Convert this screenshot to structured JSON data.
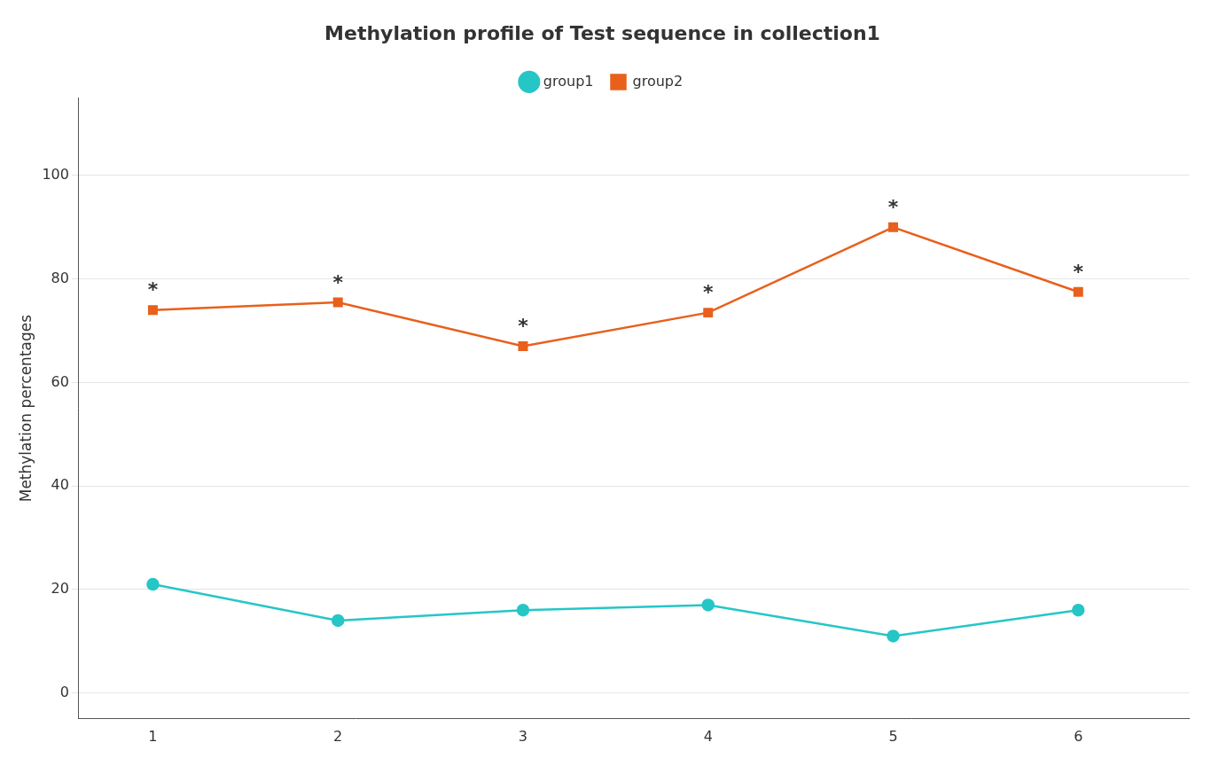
{
  "chart_data": {
    "type": "line",
    "title": "Methylation profile of Test sequence in collection1",
    "ylabel": "Methylation percentages",
    "x": [
      1,
      2,
      3,
      4,
      5,
      6
    ],
    "series": [
      {
        "name": "group1",
        "color": "#26C6C6",
        "marker": "circle",
        "values": [
          21.0,
          14.0,
          16.0,
          17.0,
          11.0,
          16.0
        ]
      },
      {
        "name": "group2",
        "color": "#E8601C",
        "marker": "square",
        "values": [
          74.0,
          75.5,
          67.0,
          73.5,
          90.0,
          77.5
        ]
      }
    ],
    "xlim": [
      0.6,
      6.6
    ],
    "xticks": [
      1,
      2,
      3,
      4,
      5,
      6
    ],
    "ylim": [
      -5,
      115
    ],
    "yticks": [
      0,
      20,
      40,
      60,
      80,
      100
    ],
    "grid": "y",
    "legend": "top",
    "annotations": [
      {
        "x": 1,
        "y": 74.0,
        "text": "*"
      },
      {
        "x": 2,
        "y": 75.5,
        "text": "*"
      },
      {
        "x": 3,
        "y": 67.0,
        "text": "*"
      },
      {
        "x": 4,
        "y": 73.5,
        "text": "*"
      },
      {
        "x": 5,
        "y": 90.0,
        "text": "*"
      },
      {
        "x": 6,
        "y": 77.5,
        "text": "*"
      }
    ]
  }
}
